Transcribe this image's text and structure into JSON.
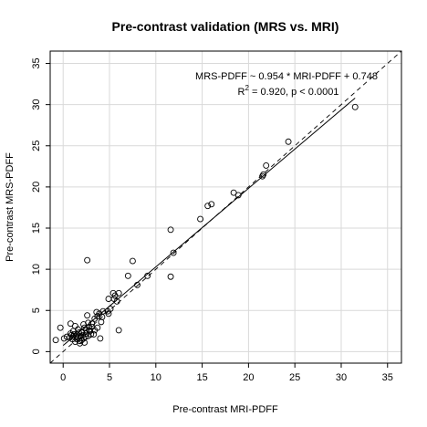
{
  "chart_data": {
    "type": "scatter",
    "title": "Pre-contrast validation (MRS vs. MRI)",
    "xlabel": "Pre-contrast MRI-PDFF",
    "ylabel": "Pre-contrast MRS-PDFF",
    "xlim": [
      -1.4,
      36.5
    ],
    "ylim": [
      -1.4,
      36.5
    ],
    "xticks": [
      0,
      5,
      10,
      15,
      20,
      25,
      30,
      35
    ],
    "yticks": [
      0,
      5,
      10,
      15,
      20,
      25,
      30,
      35
    ],
    "grid": true,
    "annotations": {
      "equation": "MRS-PDFF ~ 0.954 * MRI-PDFF + 0.748",
      "r2_label": "R",
      "r2_exp": "2",
      "r2_value": " = 0.920, p < 0.0001"
    },
    "regression_line": {
      "slope": 0.954,
      "intercept": 0.748,
      "x_range": [
        0,
        31.5
      ],
      "style": "solid"
    },
    "identity_line": {
      "slope": 1,
      "intercept": 0,
      "style": "dashed"
    },
    "series": [
      {
        "points": [
          [
            31.5,
            29.7
          ],
          [
            24.3,
            25.5
          ],
          [
            21.9,
            22.6
          ],
          [
            21.6,
            21.5
          ],
          [
            21.5,
            21.3
          ],
          [
            18.4,
            19.3
          ],
          [
            18.9,
            19.0
          ],
          [
            16.0,
            17.9
          ],
          [
            15.6,
            17.7
          ],
          [
            14.8,
            16.1
          ],
          [
            11.6,
            14.8
          ],
          [
            11.9,
            12.0
          ],
          [
            11.6,
            9.1
          ],
          [
            9.1,
            9.2
          ],
          [
            8.0,
            8.1
          ],
          [
            7.5,
            11.0
          ],
          [
            7.0,
            9.2
          ],
          [
            2.6,
            11.1
          ],
          [
            6.0,
            2.6
          ],
          [
            5.4,
            7.1
          ],
          [
            6.0,
            7.1
          ],
          [
            5.5,
            6.4
          ],
          [
            4.9,
            6.4
          ],
          [
            5.8,
            6.1
          ],
          [
            5.6,
            6.8
          ],
          [
            4.8,
            4.9
          ],
          [
            4.9,
            4.6
          ],
          [
            5.1,
            5.2
          ],
          [
            4.3,
            4.9
          ],
          [
            3.9,
            4.6
          ],
          [
            3.6,
            4.8
          ],
          [
            4.2,
            4.2
          ],
          [
            3.7,
            4.3
          ],
          [
            3.4,
            4.0
          ],
          [
            4.1,
            3.6
          ],
          [
            2.6,
            4.4
          ],
          [
            3.1,
            3.4
          ],
          [
            2.7,
            3.5
          ],
          [
            2.2,
            3.3
          ],
          [
            3.1,
            3.0
          ],
          [
            2.8,
            2.6
          ],
          [
            3.7,
            2.9
          ],
          [
            1.3,
            3.1
          ],
          [
            0.8,
            3.4
          ],
          [
            -0.3,
            2.9
          ],
          [
            1.6,
            2.7
          ],
          [
            2.0,
            2.4
          ],
          [
            2.3,
            2.9
          ],
          [
            1.1,
            2.5
          ],
          [
            1.7,
            2.3
          ],
          [
            2.5,
            2.2
          ],
          [
            0.9,
            2.0
          ],
          [
            1.4,
            1.9
          ],
          [
            1.2,
            2.1
          ],
          [
            0.4,
            1.8
          ],
          [
            0.1,
            1.6
          ],
          [
            -0.8,
            1.4
          ],
          [
            1.5,
            1.5
          ],
          [
            1.8,
            1.3
          ],
          [
            2.2,
            1.6
          ],
          [
            2.4,
            1.8
          ],
          [
            1.9,
            1.9
          ],
          [
            2.1,
            2.0
          ],
          [
            1.0,
            1.5
          ],
          [
            0.7,
            1.7
          ],
          [
            1.5,
            2.1
          ],
          [
            2.0,
            1.4
          ],
          [
            2.3,
            1.1
          ],
          [
            1.8,
            1.0
          ],
          [
            2.7,
            1.9
          ],
          [
            3.0,
            2.1
          ],
          [
            1.3,
            1.2
          ],
          [
            0.8,
            2.2
          ],
          [
            2.5,
            2.6
          ],
          [
            2.0,
            2.3
          ],
          [
            1.6,
            1.7
          ],
          [
            2.9,
            2.5
          ],
          [
            3.4,
            2.6
          ],
          [
            2.8,
            3.0
          ],
          [
            4.0,
            1.6
          ],
          [
            3.3,
            2.1
          ],
          [
            1.1,
            1.9
          ]
        ]
      }
    ]
  }
}
